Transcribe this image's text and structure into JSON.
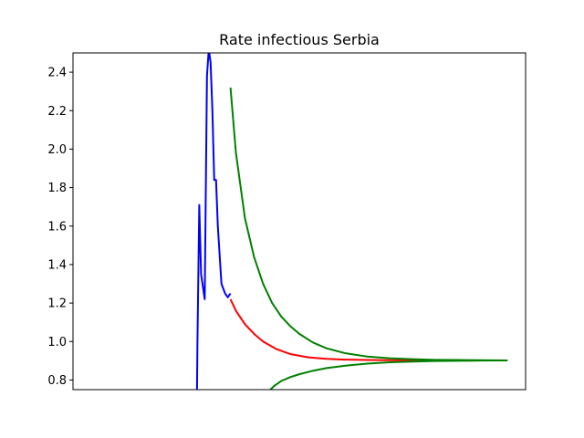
{
  "chart_data": {
    "type": "line",
    "title": "Rate infectious Serbia",
    "xlabel": "",
    "ylabel": "",
    "xlim": [
      0,
      100
    ],
    "ylim": [
      0.75,
      2.5
    ],
    "x_ticks_shown": false,
    "y_ticks": [
      0.8,
      1.0,
      1.2,
      1.4,
      1.6,
      1.8,
      2.0,
      2.2,
      2.4
    ],
    "y_tick_labels": [
      "0.8",
      "1.0",
      "1.2",
      "1.4",
      "1.6",
      "1.8",
      "2.0",
      "2.2",
      "2.4"
    ],
    "grid": false,
    "legend": "none",
    "series": [
      {
        "color": "#0000ff",
        "x": [
          27.4,
          27.5,
          27.9,
          28.3,
          29.1,
          29.6,
          30.0,
          30.4,
          30.8,
          31.2,
          31.6,
          32.0,
          32.8,
          33.6,
          34.2,
          34.8
        ],
        "y": [
          0.75,
          1.0,
          1.71,
          1.35,
          1.22,
          2.38,
          2.52,
          2.45,
          2.2,
          1.84,
          1.84,
          1.6,
          1.3,
          1.25,
          1.23,
          1.25
        ]
      },
      {
        "color": "#ff0000",
        "x": [
          34.8,
          36,
          38,
          40,
          42,
          45,
          48,
          52,
          56,
          60,
          65,
          70,
          75,
          80,
          85,
          90,
          95,
          96
        ],
        "y": [
          1.22,
          1.16,
          1.09,
          1.04,
          1.0,
          0.96,
          0.935,
          0.918,
          0.91,
          0.906,
          0.904,
          0.903,
          0.902,
          0.902,
          0.902,
          0.902,
          0.902,
          0.902
        ]
      },
      {
        "color": "#008000",
        "x": [
          34.8,
          36,
          38,
          40,
          42,
          44,
          46,
          48,
          50,
          53,
          56,
          60,
          65,
          70,
          75,
          80,
          85,
          90,
          95,
          96
        ],
        "y": [
          2.32,
          1.98,
          1.64,
          1.44,
          1.3,
          1.2,
          1.13,
          1.08,
          1.04,
          0.995,
          0.965,
          0.94,
          0.922,
          0.913,
          0.908,
          0.905,
          0.904,
          0.903,
          0.902,
          0.902
        ]
      },
      {
        "color": "#008000",
        "x": [
          43.6,
          44.5,
          46,
          48,
          50,
          53,
          56,
          60,
          65,
          70,
          75,
          80,
          85,
          90,
          95,
          96
        ],
        "y": [
          0.75,
          0.77,
          0.795,
          0.815,
          0.83,
          0.848,
          0.862,
          0.874,
          0.885,
          0.892,
          0.896,
          0.899,
          0.9,
          0.901,
          0.902,
          0.902
        ]
      }
    ]
  }
}
